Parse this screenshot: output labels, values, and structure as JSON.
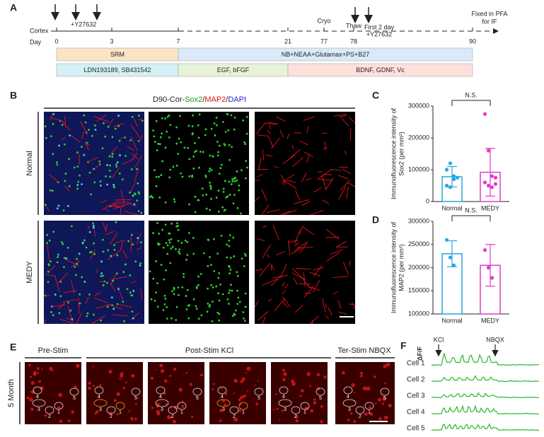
{
  "panel_a": {
    "label": "A",
    "row_labels": [
      "Cortex",
      "Day"
    ],
    "days": [
      "0",
      "3",
      "7",
      "21",
      "77",
      "78",
      "90"
    ],
    "notes": {
      "y27632": "+Y27632",
      "cryo": "Cryo",
      "thaw": "Thaw",
      "first": "First 2 day",
      "y27632_2": "+Y27632",
      "fixed": "Fixed in PFA",
      "for_if": "for IF"
    },
    "media_row1": [
      "SRM",
      "NB+NEAA+Glutamax+PS+B27"
    ],
    "media_row2": [
      "LDN193189, SB431542",
      "EGF, bFGF",
      "BDNF, GDNF, Vc"
    ]
  },
  "panel_b": {
    "label": "B",
    "title_parts": [
      "D90-Cor-",
      "Sox2",
      "/",
      "MAP2",
      "/",
      "DAPI"
    ],
    "title_colors": [
      "#222222",
      "#1aa01a",
      "#222222",
      "#e01010",
      "#222222",
      "#1a28c8"
    ],
    "rows": [
      "Normal",
      "MEDY"
    ]
  },
  "chart_data": [
    {
      "type": "bar",
      "label": "C",
      "ylabel": [
        "Immunofluorescence intensity of",
        "Sox2 (per mm²)"
      ],
      "annotation": "N.S.",
      "categories": [
        "Normal",
        "MEDY"
      ],
      "colors": [
        "#2aa6e0",
        "#e03cc8"
      ],
      "values": [
        78000,
        92000
      ],
      "errors": [
        32000,
        75000
      ],
      "points": [
        [
          100000,
          120000,
          80000,
          75000,
          50000,
          45000,
          70000
        ],
        [
          275000,
          160000,
          80000,
          75000,
          60000,
          50000,
          45000,
          55000
        ]
      ],
      "ylim": [
        0,
        300000
      ],
      "yticks": [
        0,
        100000,
        200000,
        300000
      ]
    },
    {
      "type": "bar",
      "label": "D",
      "ylabel": [
        "Immunofluorescence intensity of",
        "MAP2  (per mm²)"
      ],
      "annotation": "N.S.",
      "categories": [
        "Normal",
        "MEDY"
      ],
      "colors": [
        "#2aa6e0",
        "#e03cc8"
      ],
      "values": [
        230000,
        205000
      ],
      "errors": [
        28000,
        45000
      ],
      "points": [
        [
          260000,
          222000,
          205000
        ],
        [
          238000,
          200000,
          178000
        ]
      ],
      "ylim": [
        100000,
        300000
      ],
      "yticks": [
        100000,
        150000,
        200000,
        250000,
        300000
      ]
    }
  ],
  "panel_e": {
    "label": "E",
    "headers": [
      "Pre-Stim",
      "Post-Stim KCl",
      "Ter-Stim NBQX"
    ],
    "row_label": "5 Month",
    "cells": [
      "1",
      "2",
      "3",
      "4",
      "5"
    ]
  },
  "panel_f": {
    "label": "F",
    "ylabel": "ΔF/F",
    "markers": [
      "KCl",
      "NBQX"
    ],
    "cells": [
      "Cell 1",
      "Cell 2",
      "Cell 3",
      "Cell 4",
      "Cell 5"
    ]
  }
}
